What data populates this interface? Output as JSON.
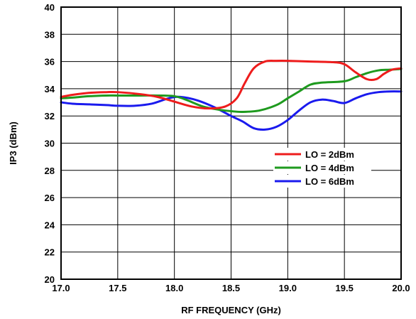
{
  "chart_data": {
    "type": "line",
    "xlabel": "RF FREQUENCY (GHz)",
    "ylabel": "IP3 (dBm)",
    "xlim": [
      17.0,
      20.0
    ],
    "ylim": [
      20,
      40
    ],
    "x_ticks": [
      "17.0",
      "17.5",
      "18.0",
      "18.5",
      "19.0",
      "19.5",
      "20.0"
    ],
    "y_ticks": [
      "20",
      "22",
      "24",
      "26",
      "28",
      "30",
      "32",
      "34",
      "36",
      "38",
      "40"
    ],
    "grid": true,
    "legend_position": "right",
    "series": [
      {
        "name": "LO = 2dBm",
        "color": "#ee1c1c",
        "x": [
          17.0,
          17.1,
          17.25,
          17.4,
          17.5,
          17.7,
          17.85,
          18.0,
          18.15,
          18.3,
          18.45,
          18.55,
          18.62,
          18.7,
          18.8,
          18.9,
          19.0,
          19.2,
          19.4,
          19.5,
          19.6,
          19.7,
          19.78,
          19.85,
          19.92,
          20.0
        ],
        "y": [
          33.4,
          33.55,
          33.7,
          33.75,
          33.75,
          33.6,
          33.4,
          33.05,
          32.7,
          32.55,
          32.7,
          33.3,
          34.4,
          35.5,
          36.0,
          36.05,
          36.05,
          36.0,
          35.95,
          35.8,
          35.2,
          34.7,
          34.7,
          35.1,
          35.4,
          35.5
        ]
      },
      {
        "name": "LO = 4dBm",
        "color": "#1e9a1e",
        "x": [
          17.0,
          17.1,
          17.25,
          17.4,
          17.5,
          17.7,
          17.85,
          18.0,
          18.1,
          18.25,
          18.4,
          18.5,
          18.6,
          18.75,
          18.9,
          19.0,
          19.1,
          19.2,
          19.3,
          19.5,
          19.6,
          19.7,
          19.8,
          19.9,
          20.0
        ],
        "y": [
          33.3,
          33.35,
          33.45,
          33.5,
          33.5,
          33.5,
          33.5,
          33.45,
          33.2,
          32.7,
          32.45,
          32.35,
          32.3,
          32.4,
          32.8,
          33.3,
          33.8,
          34.3,
          34.45,
          34.55,
          34.85,
          35.15,
          35.35,
          35.4,
          35.45
        ]
      },
      {
        "name": "LO = 6dBm",
        "color": "#1a1aee",
        "x": [
          17.0,
          17.1,
          17.25,
          17.4,
          17.5,
          17.65,
          17.8,
          17.95,
          18.05,
          18.2,
          18.35,
          18.5,
          18.6,
          18.7,
          18.8,
          18.9,
          19.0,
          19.1,
          19.2,
          19.3,
          19.4,
          19.5,
          19.6,
          19.7,
          19.8,
          19.9,
          20.0
        ],
        "y": [
          33.0,
          32.9,
          32.85,
          32.8,
          32.75,
          32.75,
          32.9,
          33.3,
          33.4,
          33.15,
          32.65,
          32.0,
          31.6,
          31.1,
          31.0,
          31.2,
          31.7,
          32.4,
          33.0,
          33.2,
          33.1,
          32.95,
          33.3,
          33.6,
          33.75,
          33.8,
          33.8
        ]
      }
    ]
  }
}
